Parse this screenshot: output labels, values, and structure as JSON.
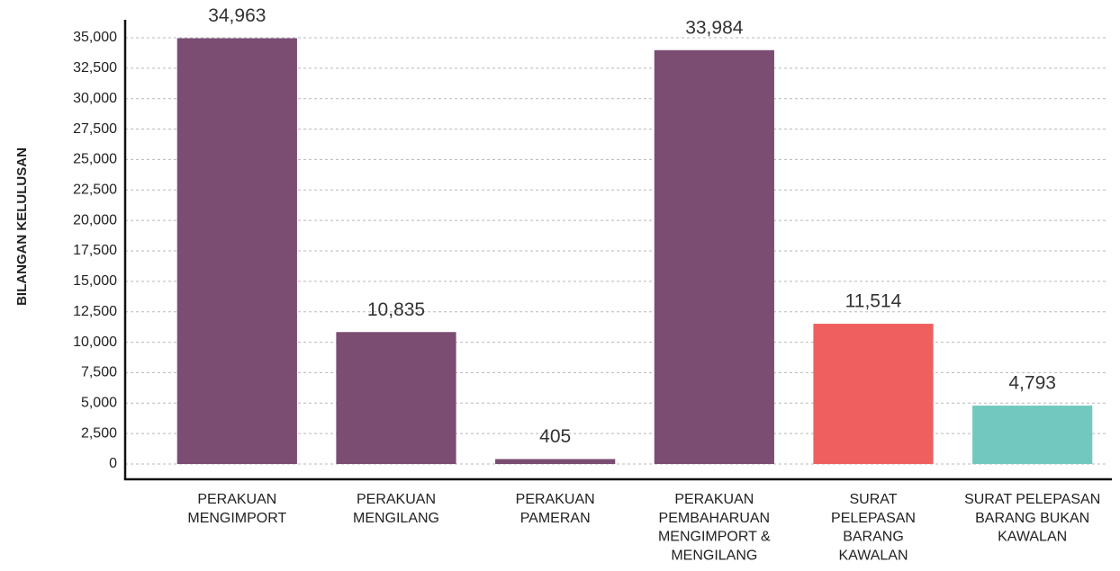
{
  "chart_data": {
    "type": "bar",
    "ylabel": "BILANGAN KELULUSAN",
    "categories": [
      "PERAKUAN\nMENGIMPORT",
      "PERAKUAN\nMENGILANG",
      "PERAKUAN\nPAMERAN",
      "PERAKUAN\nPEMBAHARUAN\nMENGIMPORT &\nMENGILANG",
      "SURAT\nPELEPASAN\nBARANG\nKAWALAN",
      "SURAT PELEPASAN\nBARANG BUKAN\nKAWALAN"
    ],
    "values": [
      34963,
      10835,
      405,
      33984,
      11514,
      4793
    ],
    "value_labels": [
      "34,963",
      "10,835",
      "405",
      "33,984",
      "11,514",
      "4,793"
    ],
    "colors": [
      "#7b4d73",
      "#7b4d73",
      "#7b4d73",
      "#7b4d73",
      "#ef5f5f",
      "#72c8bf"
    ],
    "ylim": [
      0,
      35000
    ],
    "yticks": [
      0,
      {
        "value": 2500,
        "label": "2,500"
      },
      {
        "value": 5000,
        "label": "5,000"
      },
      {
        "value": 7500,
        "label": "7,500"
      },
      {
        "value": 10000,
        "label": "10,000"
      },
      {
        "value": 12500,
        "label": "12,500"
      },
      {
        "value": 15000,
        "label": "15,000"
      },
      {
        "value": 17500,
        "label": "17,500"
      },
      {
        "value": 20000,
        "label": "20,000"
      },
      {
        "value": 22500,
        "label": "22,500"
      },
      {
        "value": 25000,
        "label": "25,000"
      },
      {
        "value": 27500,
        "label": "27,500"
      },
      {
        "value": 30000,
        "label": "30,000"
      },
      {
        "value": 32500,
        "label": "32,500"
      },
      {
        "value": 35000,
        "label": "35,000"
      }
    ],
    "grid": true
  }
}
